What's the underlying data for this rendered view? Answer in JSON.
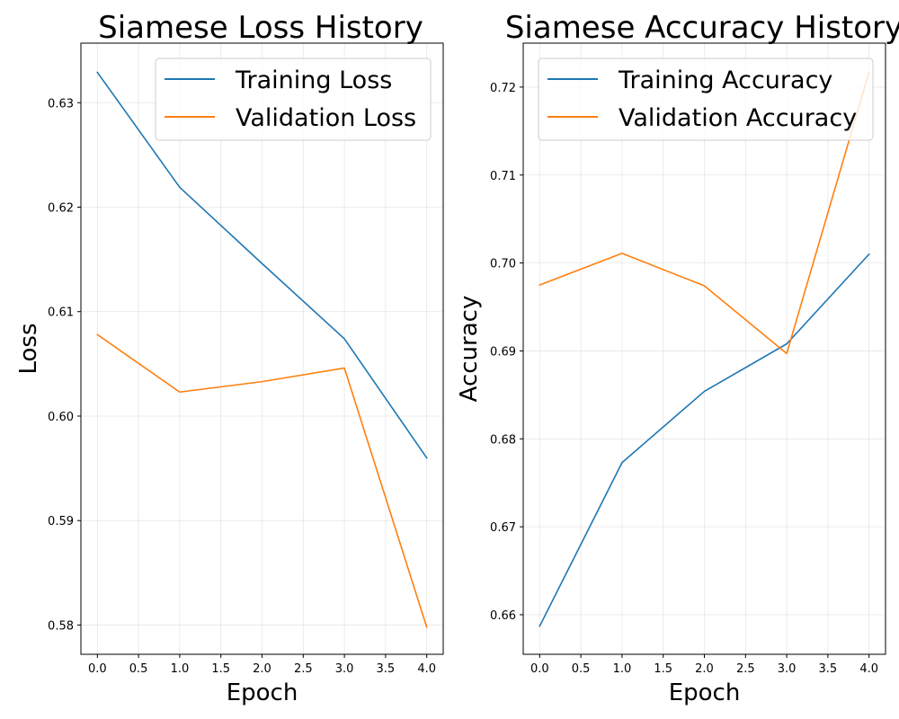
{
  "chart_data": [
    {
      "type": "line",
      "title": "Siamese Loss History",
      "xlabel": "Epoch",
      "ylabel": "Loss",
      "x": [
        0,
        1,
        2,
        3,
        4
      ],
      "xlim": [
        -0.2,
        4.2
      ],
      "ylim": [
        0.5772,
        0.6357
      ],
      "xticks": [
        0.0,
        0.5,
        1.0,
        1.5,
        2.0,
        2.5,
        3.0,
        3.5,
        4.0
      ],
      "xtick_labels": [
        "0.0",
        "0.5",
        "1.0",
        "1.5",
        "2.0",
        "2.5",
        "3.0",
        "3.5",
        "4.0"
      ],
      "yticks": [
        0.58,
        0.59,
        0.6,
        0.61,
        0.62,
        0.63
      ],
      "ytick_labels": [
        "0.58",
        "0.59",
        "0.60",
        "0.61",
        "0.62",
        "0.63"
      ],
      "grid": true,
      "legend_position": "top-right",
      "series": [
        {
          "name": "Training Loss",
          "color": "#1f77b4",
          "values": [
            0.6329,
            0.6219,
            0.6146,
            0.6074,
            0.596
          ]
        },
        {
          "name": "Validation Loss",
          "color": "#ff7f0e",
          "values": [
            0.6078,
            0.6023,
            0.6033,
            0.6046,
            0.5798
          ]
        }
      ]
    },
    {
      "type": "line",
      "title": "Siamese Accuracy History",
      "xlabel": "Epoch",
      "ylabel": "Accuracy",
      "x": [
        0,
        1,
        2,
        3,
        4
      ],
      "xlim": [
        -0.2,
        4.2
      ],
      "ylim": [
        0.6555,
        0.725
      ],
      "xticks": [
        0.0,
        0.5,
        1.0,
        1.5,
        2.0,
        2.5,
        3.0,
        3.5,
        4.0
      ],
      "xtick_labels": [
        "0.0",
        "0.5",
        "1.0",
        "1.5",
        "2.0",
        "2.5",
        "3.0",
        "3.5",
        "4.0"
      ],
      "yticks": [
        0.66,
        0.67,
        0.68,
        0.69,
        0.7,
        0.71,
        0.72
      ],
      "ytick_labels": [
        "0.66",
        "0.67",
        "0.68",
        "0.69",
        "0.70",
        "0.71",
        "0.72"
      ],
      "grid": true,
      "legend_position": "top-right",
      "series": [
        {
          "name": "Training Accuracy",
          "color": "#1f77b4",
          "values": [
            0.6587,
            0.6773,
            0.6854,
            0.6908,
            0.701
          ]
        },
        {
          "name": "Validation Accuracy",
          "color": "#ff7f0e",
          "values": [
            0.6975,
            0.7011,
            0.6974,
            0.6897,
            0.7217
          ]
        }
      ]
    }
  ]
}
